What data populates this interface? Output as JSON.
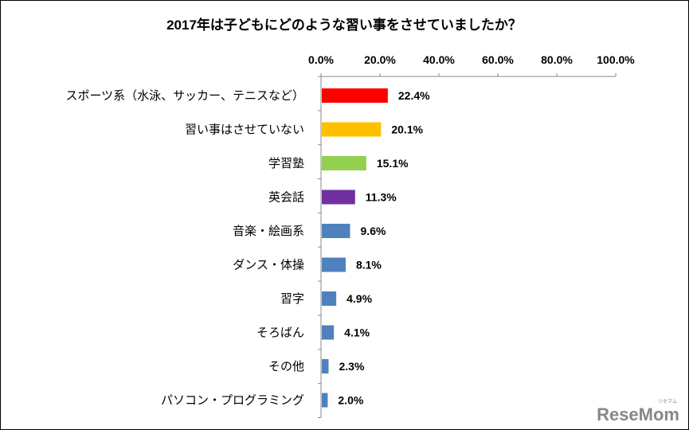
{
  "chart_data": {
    "type": "bar",
    "orientation": "horizontal",
    "title": "2017年は子どもにどのような習い事をさせていましたか？",
    "categories": [
      "スポーツ系（水泳、サッカー、テニスなど）",
      "習い事はさせていない",
      "学習塾",
      "英会話",
      "音楽・絵画系",
      "ダンス・体操",
      "習字",
      "そろばん",
      "その他",
      "パソコン・プログラミング"
    ],
    "values": [
      22.4,
      20.1,
      15.1,
      11.3,
      9.6,
      8.1,
      4.9,
      4.1,
      2.3,
      2.0
    ],
    "value_labels": [
      "22.4%",
      "20.1%",
      "15.1%",
      "11.3%",
      "9.6%",
      "8.1%",
      "4.9%",
      "4.1%",
      "2.3%",
      "2.0%"
    ],
    "bar_colors": [
      "#ff0000",
      "#ffc000",
      "#92d050",
      "#7030a0",
      "#4f81bd",
      "#4f81bd",
      "#4f81bd",
      "#4f81bd",
      "#4f81bd",
      "#4f81bd"
    ],
    "xlim": [
      0,
      100
    ],
    "ticks": [
      0,
      20,
      40,
      60,
      80,
      100
    ],
    "tick_labels": [
      "0.0%",
      "20.0%",
      "40.0%",
      "60.0%",
      "80.0%",
      "100.0%"
    ],
    "axis_position": "top",
    "grid": false,
    "legend": "none"
  },
  "watermark": {
    "brand": "ReseMom",
    "tagline": "リセマム"
  }
}
